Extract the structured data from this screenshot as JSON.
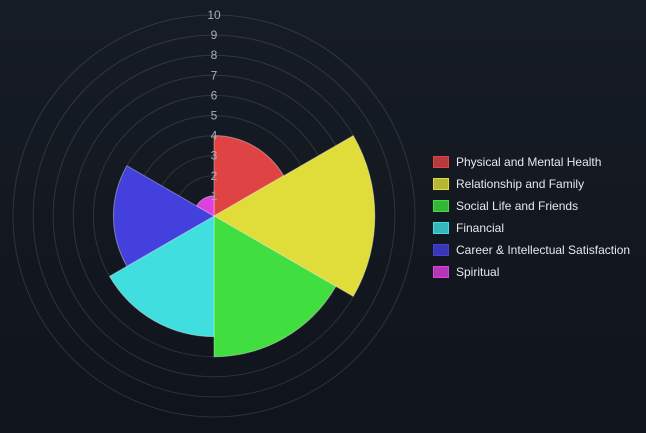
{
  "chart_data": {
    "type": "polarArea",
    "rmin": 0,
    "rmax": 10,
    "tick_labels": [
      "1",
      "2",
      "3",
      "4",
      "5",
      "6",
      "7",
      "8",
      "9",
      "10"
    ],
    "categories": [
      "Physical and Mental Health",
      "Relationship and Family",
      "Social Life and Friends",
      "Financial",
      "Career & Intellectual Satisfaction",
      "Spiritual"
    ],
    "values": [
      4,
      8,
      7,
      6,
      5,
      1
    ],
    "colors": [
      "#e04343",
      "#e0dd3b",
      "#40de3e",
      "#40dede",
      "#4340de",
      "#de40de"
    ],
    "legend_position": "right",
    "grid": true
  },
  "legend": {
    "items": [
      {
        "label": "Physical and Mental Health",
        "color": "#e04343"
      },
      {
        "label": "Relationship and Family",
        "color": "#e0dd3b"
      },
      {
        "label": "Social Life and Friends",
        "color": "#40de3e"
      },
      {
        "label": "Financial",
        "color": "#40dede"
      },
      {
        "label": "Career & Intellectual Satisfaction",
        "color": "#4340de"
      },
      {
        "label": "Spiritual",
        "color": "#de40de"
      }
    ]
  }
}
